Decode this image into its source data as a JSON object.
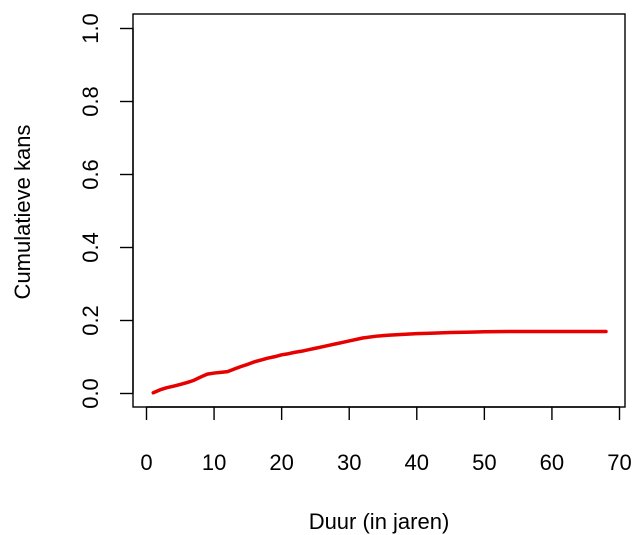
{
  "chart_data": {
    "type": "line",
    "title": "",
    "xlabel": "Duur (in jaren)",
    "ylabel": "Cumulatieve kans",
    "xlim": [
      0,
      70
    ],
    "ylim": [
      0,
      1
    ],
    "x_ticks": [
      0,
      10,
      20,
      30,
      40,
      50,
      60,
      70
    ],
    "x_tick_labels": [
      "0",
      "10",
      "20",
      "30",
      "40",
      "50",
      "60",
      "70"
    ],
    "y_ticks": [
      0.0,
      0.2,
      0.4,
      0.6,
      0.8,
      1.0
    ],
    "y_tick_labels": [
      "0.0",
      "0.2",
      "0.4",
      "0.6",
      "0.8",
      "1.0"
    ],
    "grid": false,
    "legend": "none",
    "series": [
      {
        "color": "#e60000",
        "x": [
          1,
          2,
          3,
          4,
          5,
          6,
          7,
          8,
          9,
          10,
          11,
          12,
          13,
          14,
          15,
          16,
          17,
          18,
          19,
          20,
          21,
          22,
          23,
          24,
          25,
          26,
          27,
          28,
          29,
          30,
          32,
          34,
          36,
          38,
          40,
          42,
          45,
          48,
          50,
          55,
          60,
          65,
          68
        ],
        "y": [
          0.002,
          0.01,
          0.016,
          0.02,
          0.025,
          0.03,
          0.036,
          0.045,
          0.053,
          0.056,
          0.058,
          0.06,
          0.067,
          0.074,
          0.08,
          0.087,
          0.092,
          0.097,
          0.101,
          0.106,
          0.109,
          0.113,
          0.116,
          0.12,
          0.124,
          0.128,
          0.132,
          0.136,
          0.14,
          0.144,
          0.152,
          0.157,
          0.16,
          0.162,
          0.164,
          0.165,
          0.167,
          0.168,
          0.169,
          0.17,
          0.17,
          0.17,
          0.17
        ]
      }
    ]
  }
}
